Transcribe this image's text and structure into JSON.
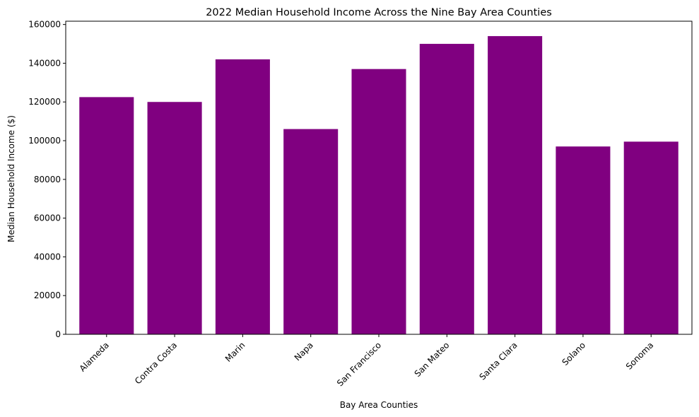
{
  "chart_data": {
    "type": "bar",
    "title": "2022 Median Household Income Across the Nine Bay Area Counties",
    "xlabel": "Bay Area Counties",
    "ylabel": "Median Household Income ($)",
    "categories": [
      "Alameda",
      "Contra Costa",
      "Marin",
      "Napa",
      "San Francisco",
      "San Mateo",
      "Santa Clara",
      "Solano",
      "Sonoma"
    ],
    "values": [
      122500,
      120000,
      142000,
      106000,
      137000,
      150000,
      154000,
      97000,
      99500
    ],
    "ylim": [
      0,
      161700
    ],
    "yticks": [
      0,
      20000,
      40000,
      60000,
      80000,
      100000,
      120000,
      140000,
      160000
    ],
    "bar_color": "#800080",
    "grid": false
  }
}
